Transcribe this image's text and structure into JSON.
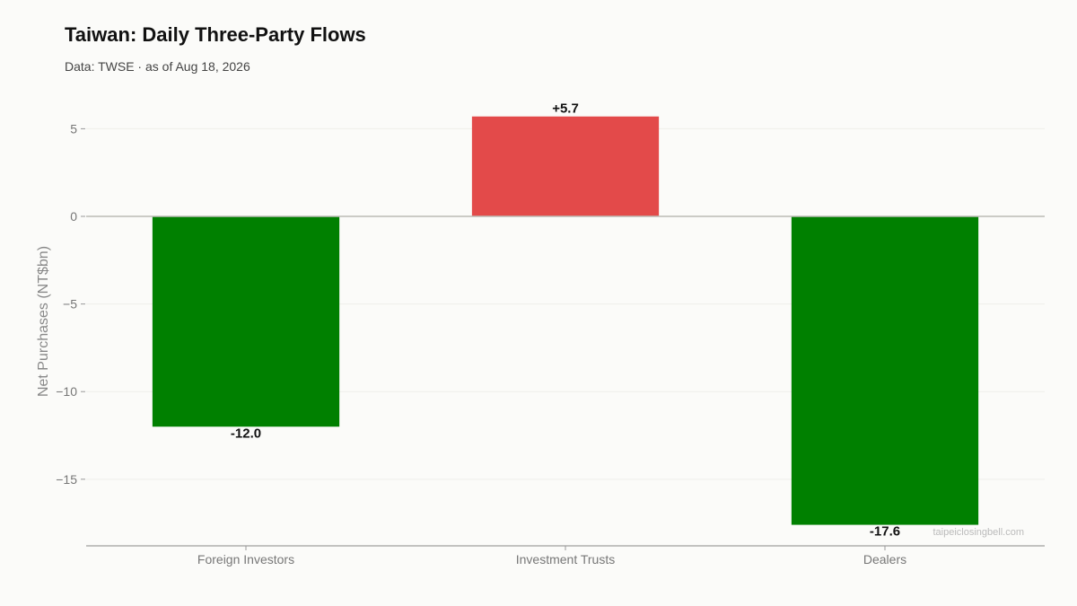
{
  "header": {
    "title": "Taiwan: Daily Three-Party Flows",
    "subtitle": "Data: TWSE · as of Aug 18, 2026"
  },
  "watermark": "taipeiclosingbell.com",
  "chart_data": {
    "type": "bar",
    "categories": [
      "Foreign Investors",
      "Investment Trusts",
      "Dealers"
    ],
    "values": [
      -12.0,
      5.7,
      -17.6
    ],
    "value_labels": [
      "-12.0",
      "+5.7",
      "-17.6"
    ],
    "title": "Taiwan: Daily Three-Party Flows",
    "subtitle": "Data: TWSE · as of Aug 18, 2026",
    "xlabel": "",
    "ylabel": "Net Purchases (NT$bn)",
    "ylim": [
      -18.8,
      6.25
    ],
    "yticks": [
      5,
      0,
      -5,
      -10,
      -15
    ],
    "ytick_labels": [
      "5",
      "0",
      "−5",
      "−10",
      "−15"
    ],
    "grid": true,
    "colors": {
      "positive": "#e34a4a",
      "negative": "#008000"
    }
  }
}
